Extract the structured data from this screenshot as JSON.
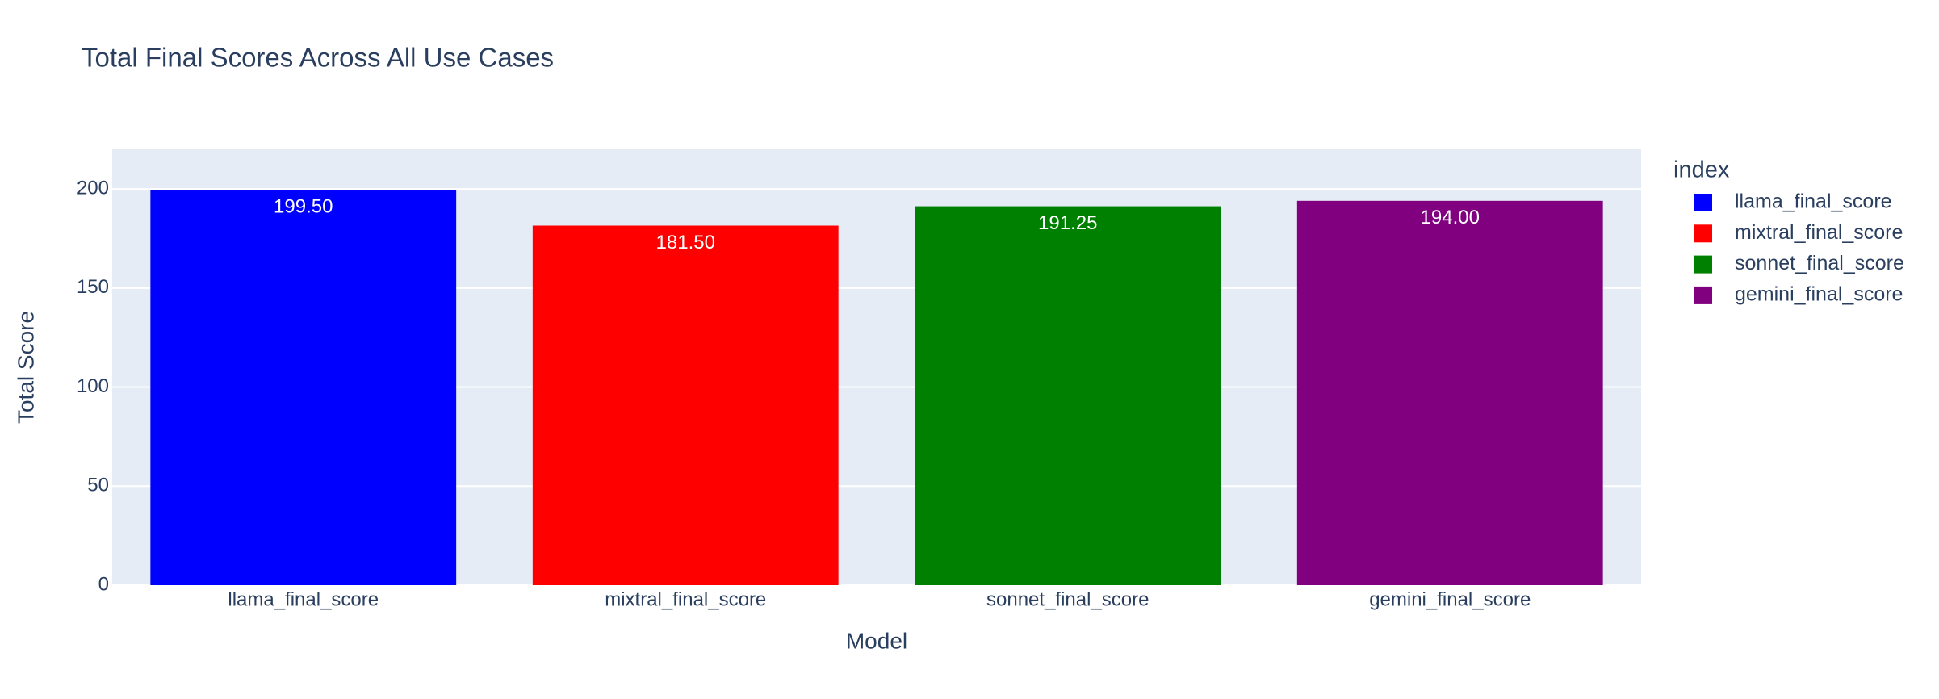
{
  "chart_data": {
    "type": "bar",
    "title": "Total Final Scores Across All Use Cases",
    "x_label": "Model",
    "y_label": "Total Score",
    "categories": [
      "llama_final_score",
      "mixtral_final_score",
      "sonnet_final_score",
      "gemini_final_score"
    ],
    "values": [
      199.5,
      181.5,
      191.25,
      194.0
    ],
    "value_labels": [
      "199.50",
      "181.50",
      "191.25",
      "194.00"
    ],
    "colors": [
      "#0000ff",
      "#ff0000",
      "#008000",
      "#800080"
    ],
    "legend_title": "index",
    "ylim": [
      0,
      220
    ],
    "yticks": [
      0,
      50,
      100,
      150,
      200
    ],
    "grid": true
  }
}
